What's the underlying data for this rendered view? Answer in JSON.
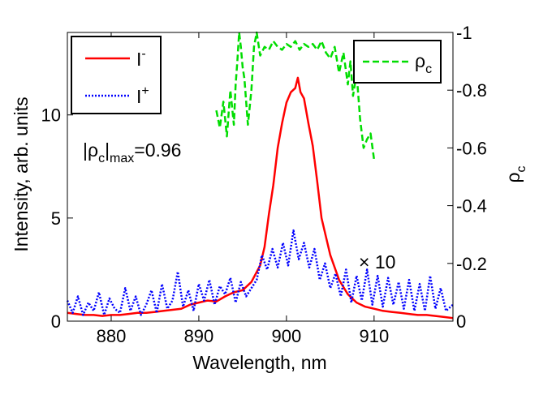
{
  "chart_data": {
    "type": "line",
    "xlabel": "Wavelength, nm",
    "ylabel_left": "Intensity, arb. units",
    "ylabel_right_symbol": "ρ",
    "ylabel_right_sub": "c",
    "xlim": [
      875,
      919
    ],
    "ylim_left": [
      0,
      14
    ],
    "ylim_right": [
      0,
      -1
    ],
    "right_axis_reversed": true,
    "x_ticks": [
      880,
      890,
      900,
      910
    ],
    "y_ticks_left": [
      0,
      5,
      10
    ],
    "y_ticks_right": [
      0,
      -0.2,
      -0.4,
      -0.6,
      -0.8,
      -1
    ],
    "y_tick_labels_right": [
      "0",
      "-0.2",
      "-0.4",
      "-0.6",
      "-0.8",
      "-1"
    ],
    "legend_left": {
      "placement": "top-left",
      "entries": [
        {
          "base": "I",
          "sup": "-",
          "color": "#ff0000",
          "style": "solid"
        },
        {
          "base": "I",
          "sup": "+",
          "color": "#0000ff",
          "style": "dotted"
        }
      ]
    },
    "legend_right": {
      "placement": "top-right",
      "entries": [
        {
          "base": "ρ",
          "sub": "c",
          "color": "#00dd00",
          "style": "dashed"
        }
      ]
    },
    "annotations": {
      "rho_max": {
        "prefix": "|ρ",
        "sub1": "c",
        "mid": "|",
        "sub2": "max",
        "value": "=0.96"
      },
      "times10": {
        "text": "× 10",
        "color": "#0000ff"
      }
    },
    "series": [
      {
        "name": "I-",
        "axis": "left",
        "color": "#ff0000",
        "style": "solid",
        "x": [
          875,
          876,
          877,
          878,
          879,
          880,
          881,
          882,
          883,
          884,
          885,
          886,
          887,
          888,
          889,
          890,
          891,
          892,
          893,
          894,
          895,
          896,
          897,
          897.5,
          898,
          898.5,
          899,
          899.5,
          900,
          900.5,
          901,
          901.3,
          901.6,
          902,
          902.5,
          903,
          903.5,
          904,
          905,
          906,
          907,
          908,
          909,
          910,
          911,
          912,
          913,
          914,
          915,
          916,
          917,
          918,
          919
        ],
        "y": [
          0.4,
          0.35,
          0.3,
          0.3,
          0.25,
          0.3,
          0.3,
          0.35,
          0.4,
          0.4,
          0.45,
          0.5,
          0.55,
          0.6,
          0.8,
          0.9,
          1.0,
          0.95,
          1.2,
          1.4,
          1.5,
          1.9,
          2.7,
          3.6,
          5.2,
          6.6,
          8.4,
          9.6,
          10.6,
          11.1,
          11.3,
          11.8,
          11.1,
          10.8,
          9.6,
          8.5,
          6.8,
          5.0,
          3.2,
          2.0,
          1.3,
          0.9,
          0.7,
          0.6,
          0.5,
          0.45,
          0.4,
          0.35,
          0.3,
          0.3,
          0.25,
          0.2,
          0.15
        ]
      },
      {
        "name": "I+",
        "axis": "left",
        "color": "#0000ff",
        "style": "dotted",
        "x": [
          875,
          875.6,
          876.2,
          876.8,
          877.4,
          878,
          878.6,
          879.2,
          879.8,
          880.4,
          881,
          881.6,
          882.2,
          882.8,
          883.4,
          884,
          884.6,
          885.2,
          885.8,
          886.4,
          887,
          887.6,
          888.2,
          888.8,
          889.4,
          890,
          890.6,
          891.2,
          891.8,
          892.4,
          893,
          893.6,
          894.2,
          894.8,
          895.4,
          896,
          896.6,
          897.2,
          897.8,
          898.4,
          899,
          899.6,
          900.2,
          900.8,
          901.4,
          902,
          902.6,
          903.2,
          903.8,
          904.4,
          905,
          905.6,
          906.2,
          906.8,
          907.4,
          908,
          908.6,
          909.2,
          909.8,
          910.4,
          911,
          911.6,
          912.2,
          912.8,
          913.4,
          914,
          914.6,
          915.2,
          915.8,
          916.4,
          917,
          917.6,
          918.2,
          919
        ],
        "y": [
          1.0,
          0.4,
          1.2,
          0.3,
          0.9,
          0.5,
          1.4,
          0.3,
          1.1,
          0.6,
          0.4,
          1.6,
          0.5,
          1.2,
          0.3,
          0.8,
          1.5,
          0.4,
          1.8,
          0.6,
          1.0,
          2.4,
          0.7,
          1.5,
          0.5,
          1.8,
          1.0,
          2.0,
          0.8,
          1.7,
          1.3,
          2.1,
          0.9,
          1.9,
          1.2,
          1.6,
          2.0,
          3.2,
          2.5,
          3.5,
          2.6,
          3.8,
          2.7,
          4.4,
          3.0,
          3.8,
          2.6,
          3.5,
          2.0,
          2.8,
          1.6,
          2.3,
          1.2,
          2.5,
          0.9,
          2.2,
          1.0,
          2.5,
          0.8,
          2.2,
          0.7,
          2.1,
          0.8,
          1.9,
          0.6,
          2.0,
          0.5,
          1.8,
          0.5,
          2.2,
          0.6,
          1.6,
          0.5,
          0.8
        ]
      },
      {
        "name": "ρc",
        "axis": "right",
        "color": "#00dd00",
        "style": "dashed",
        "x": [
          892,
          892.4,
          892.8,
          893.2,
          893.6,
          894,
          894.2,
          894.4,
          894.6,
          894.8,
          895,
          895.2,
          895.6,
          896,
          896.3,
          896.6,
          897,
          897.5,
          898,
          898.5,
          899,
          899.5,
          900,
          900.5,
          901,
          901.5,
          902,
          902.5,
          903,
          903.5,
          904,
          904.5,
          905,
          905.5,
          906,
          906.5,
          907,
          907.3,
          907.6,
          908,
          908.4,
          908.8,
          909.2,
          909.6,
          910
        ],
        "y": [
          -0.73,
          -0.67,
          -0.76,
          -0.64,
          -0.8,
          -0.68,
          -0.82,
          -0.9,
          -1.0,
          -0.95,
          -0.88,
          -0.84,
          -0.68,
          -0.8,
          -0.95,
          -1.0,
          -0.92,
          -0.95,
          -0.94,
          -0.97,
          -0.95,
          -0.94,
          -0.96,
          -0.95,
          -0.97,
          -0.94,
          -0.96,
          -0.95,
          -0.96,
          -0.94,
          -0.97,
          -0.93,
          -0.91,
          -0.95,
          -0.86,
          -0.93,
          -0.82,
          -0.9,
          -0.78,
          -0.86,
          -0.7,
          -0.6,
          -0.63,
          -0.65,
          -0.56
        ]
      }
    ]
  }
}
